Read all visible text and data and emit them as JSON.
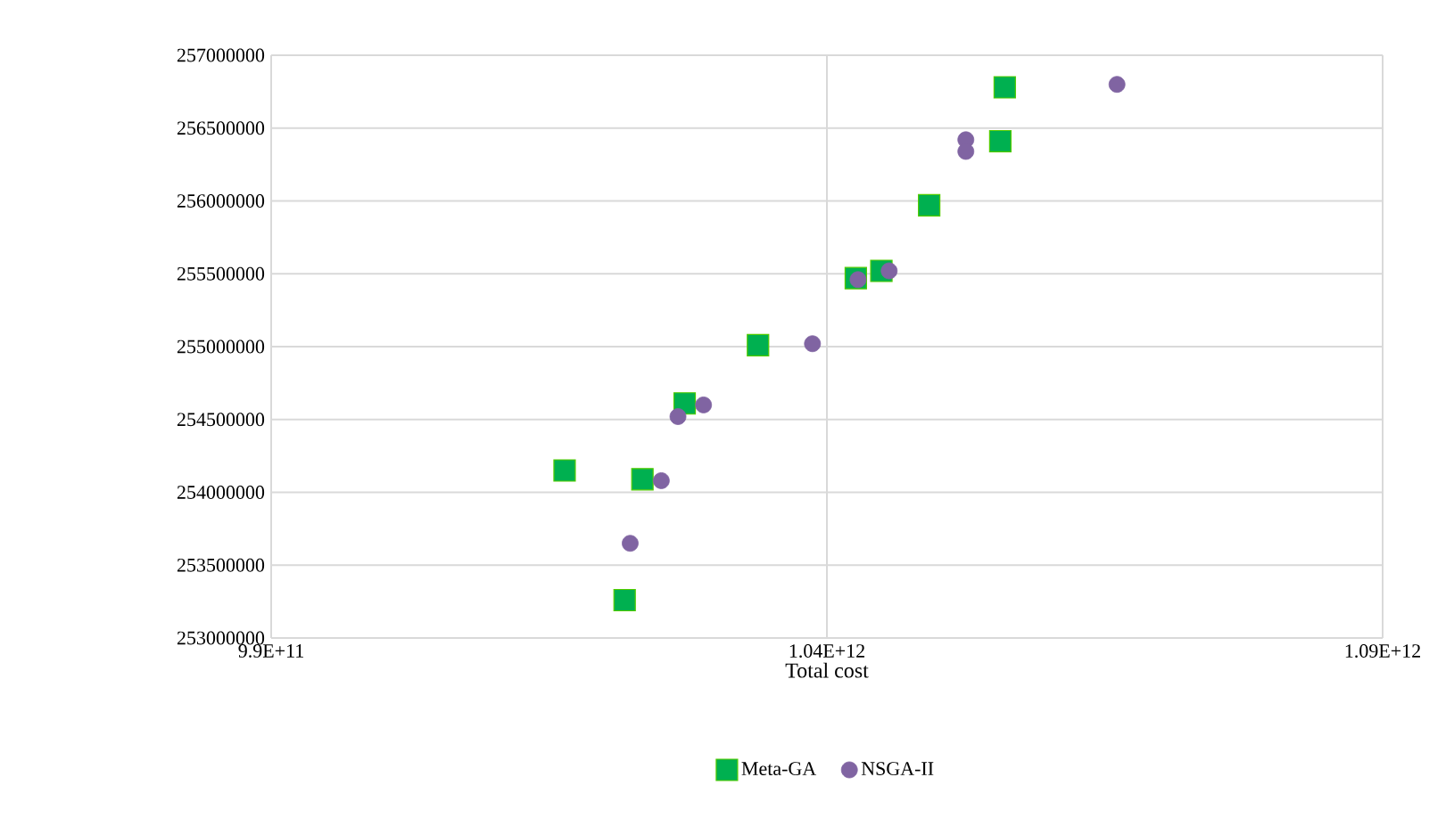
{
  "chart_data": {
    "type": "scatter",
    "xlabel": "Total cost",
    "xlim": [
      990000000000,
      1090000000000
    ],
    "xticks": [
      {
        "value": 990000000000,
        "label": "9.9E+11"
      },
      {
        "value": 1040000000000,
        "label": "1.04E+12"
      },
      {
        "value": 1090000000000,
        "label": "1.09E+12"
      }
    ],
    "ylim": [
      253000000,
      257000000
    ],
    "yticks": [
      253000000,
      253500000,
      254000000,
      254500000,
      255000000,
      255500000,
      256000000,
      256500000,
      257000000
    ],
    "grid": true,
    "legend": "bottom",
    "series": [
      {
        "name": "Meta-GA",
        "color": "#00b050",
        "marker": "square",
        "x": [
          1056000000000,
          1055600000000,
          1049200000000,
          1042600000000,
          1044900000000,
          1033800000000,
          1027200000000,
          1016400000000,
          1023400000000,
          1021800000000
        ],
        "values": [
          256780000,
          256410000,
          255970000,
          255470000,
          255520000,
          255010000,
          254610000,
          254150000,
          254090000,
          253260000
        ]
      },
      {
        "name": "NSGA-II",
        "color": "#8064a2",
        "marker": "circle",
        "x": [
          1066100000000,
          1052500000000,
          1052500000000,
          1042800000000,
          1045600000000,
          1038700000000,
          1028900000000,
          1026600000000,
          1025100000000,
          1022300000000
        ],
        "values": [
          256800000,
          256420000,
          256340000,
          255460000,
          255520000,
          255020000,
          254600000,
          254520000,
          254080000,
          253650000
        ]
      }
    ]
  }
}
